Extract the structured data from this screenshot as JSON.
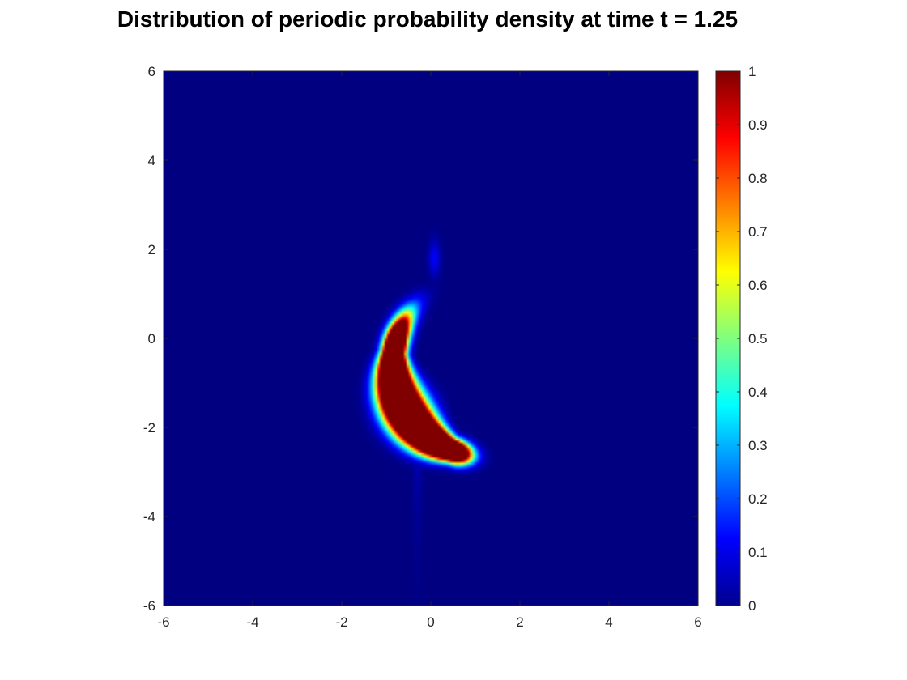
{
  "chart_data": {
    "type": "heatmap",
    "title": "Distribution of periodic probability density at time t = 1.25",
    "xlabel": "",
    "ylabel": "",
    "xlim": [
      -6,
      6
    ],
    "ylim": [
      -6,
      6
    ],
    "x_ticks": [
      "-6",
      "-4",
      "-2",
      "0",
      "2",
      "4",
      "6"
    ],
    "y_ticks": [
      "6",
      "4",
      "2",
      "0",
      "-2",
      "-4",
      "-6"
    ],
    "colorbar": {
      "range": [
        0,
        1
      ],
      "ticks": [
        "1",
        "0.9",
        "0.8",
        "0.7",
        "0.6",
        "0.5",
        "0.4",
        "0.3",
        "0.2",
        "0.1",
        "0"
      ],
      "colormap": "jet"
    },
    "grid": false,
    "features": [
      {
        "name": "main-crescent",
        "peak_value": 1,
        "center": [
          -0.7,
          -1.7
        ],
        "extent_x": [
          -2,
          -0.2
        ],
        "extent_y": [
          -2.7,
          -0.6
        ]
      },
      {
        "name": "secondary-blob",
        "peak_value": 0.12,
        "center": [
          0.08,
          1.8
        ]
      }
    ]
  }
}
